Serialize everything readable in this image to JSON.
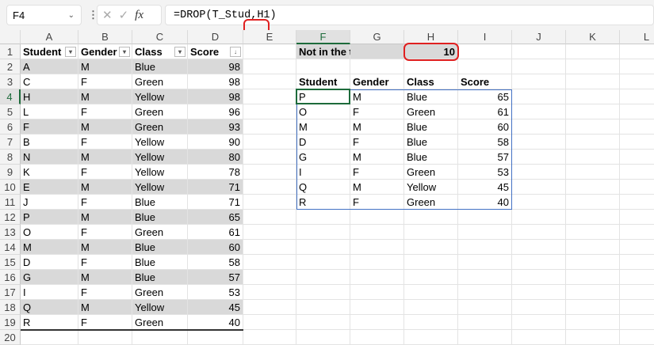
{
  "formula_bar": {
    "name_box": "F4",
    "formula_prefix": "=DROP(T_Stud",
    "formula_highlight": ",H1)",
    "fx_label": "fx"
  },
  "columns": [
    "A",
    "B",
    "C",
    "D",
    "E",
    "F",
    "G",
    "H",
    "I",
    "J",
    "K",
    "L"
  ],
  "rows": [
    "1",
    "2",
    "3",
    "4",
    "5",
    "6",
    "7",
    "8",
    "9",
    "10",
    "11",
    "12",
    "13",
    "14",
    "15",
    "16",
    "17",
    "18",
    "19",
    "20"
  ],
  "table": {
    "headers": [
      "Student",
      "Gender",
      "Class",
      "Score"
    ],
    "rows": [
      [
        "A",
        "M",
        "Blue",
        "98"
      ],
      [
        "C",
        "F",
        "Green",
        "98"
      ],
      [
        "H",
        "M",
        "Yellow",
        "98"
      ],
      [
        "L",
        "F",
        "Green",
        "96"
      ],
      [
        "F",
        "M",
        "Green",
        "93"
      ],
      [
        "B",
        "F",
        "Yellow",
        "90"
      ],
      [
        "N",
        "M",
        "Yellow",
        "80"
      ],
      [
        "K",
        "F",
        "Yellow",
        "78"
      ],
      [
        "E",
        "M",
        "Yellow",
        "71"
      ],
      [
        "J",
        "F",
        "Blue",
        "71"
      ],
      [
        "P",
        "M",
        "Blue",
        "65"
      ],
      [
        "O",
        "F",
        "Green",
        "61"
      ],
      [
        "M",
        "M",
        "Blue",
        "60"
      ],
      [
        "D",
        "F",
        "Blue",
        "58"
      ],
      [
        "G",
        "M",
        "Blue",
        "57"
      ],
      [
        "I",
        "F",
        "Green",
        "53"
      ],
      [
        "Q",
        "M",
        "Yellow",
        "45"
      ],
      [
        "R",
        "F",
        "Green",
        "40"
      ]
    ]
  },
  "param": {
    "label": "Not in the top",
    "value": "10"
  },
  "result": {
    "headers": [
      "Student",
      "Gender",
      "Class",
      "Score"
    ],
    "rows": [
      [
        "P",
        "M",
        "Blue",
        "65"
      ],
      [
        "O",
        "F",
        "Green",
        "61"
      ],
      [
        "M",
        "M",
        "Blue",
        "60"
      ],
      [
        "D",
        "F",
        "Blue",
        "58"
      ],
      [
        "G",
        "M",
        "Blue",
        "57"
      ],
      [
        "I",
        "F",
        "Green",
        "53"
      ],
      [
        "Q",
        "M",
        "Yellow",
        "45"
      ],
      [
        "R",
        "F",
        "Green",
        "40"
      ]
    ]
  },
  "colors": {
    "band": "#d9d9d9",
    "selection": "#1d6b3b",
    "spill_border": "#4472c4",
    "highlight": "#e02020"
  }
}
